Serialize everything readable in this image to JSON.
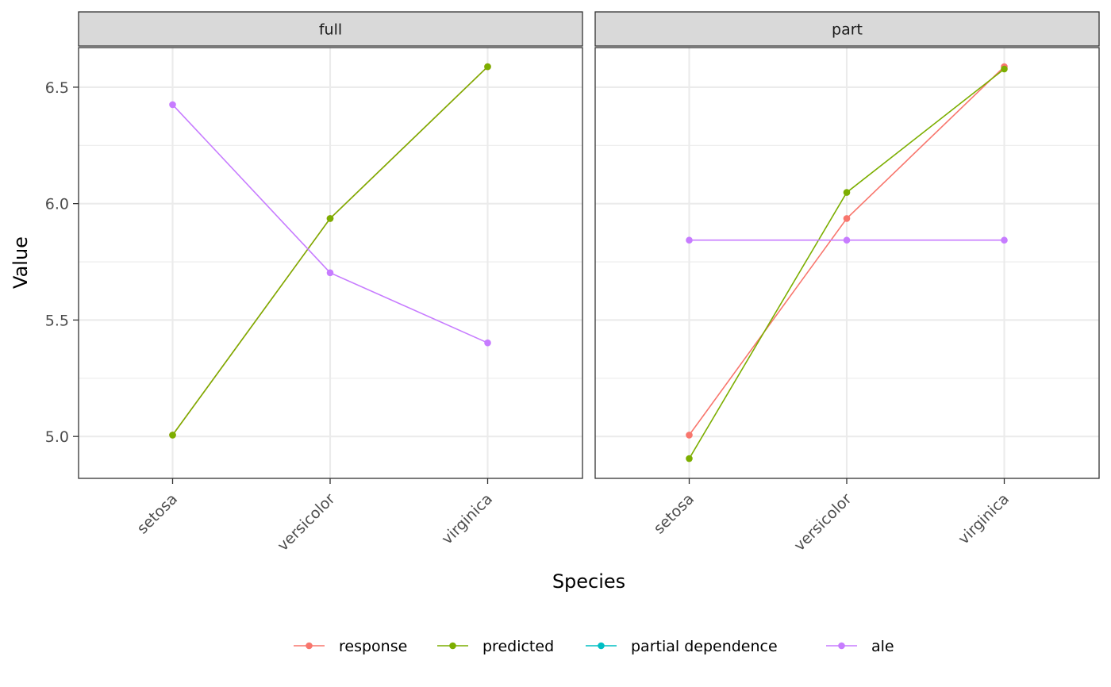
{
  "chart_data": {
    "type": "line",
    "xlabel": "Species",
    "ylabel": "Value",
    "categories": [
      "setosa",
      "versicolor",
      "virginica"
    ],
    "ylim": [
      4.82,
      6.67
    ],
    "y_ticks": [
      5.0,
      5.5,
      6.0,
      6.5
    ],
    "y_tick_labels": [
      "5.0",
      "5.5",
      "6.0",
      "6.5"
    ],
    "grid": true,
    "legend_position": "bottom",
    "legend": [
      {
        "name": "response",
        "color": "#F8766D"
      },
      {
        "name": "predicted",
        "color": "#7CAE00"
      },
      {
        "name": "partial dependence",
        "color": "#00BFC4"
      },
      {
        "name": "ale",
        "color": "#C77CFF"
      }
    ],
    "facets": [
      {
        "label": "full",
        "series": [
          {
            "name": "response",
            "values": [
              5.006,
              5.936,
              6.588
            ]
          },
          {
            "name": "predicted",
            "values": [
              5.006,
              5.936,
              6.588
            ]
          },
          {
            "name": "ale",
            "values": [
              6.425,
              5.703,
              5.402
            ]
          }
        ]
      },
      {
        "label": "part",
        "series": [
          {
            "name": "response",
            "values": [
              5.006,
              5.936,
              6.588
            ]
          },
          {
            "name": "predicted",
            "values": [
              4.905,
              6.048,
              6.578
            ]
          },
          {
            "name": "ale",
            "values": [
              5.843,
              5.843,
              5.843
            ]
          }
        ]
      }
    ]
  }
}
